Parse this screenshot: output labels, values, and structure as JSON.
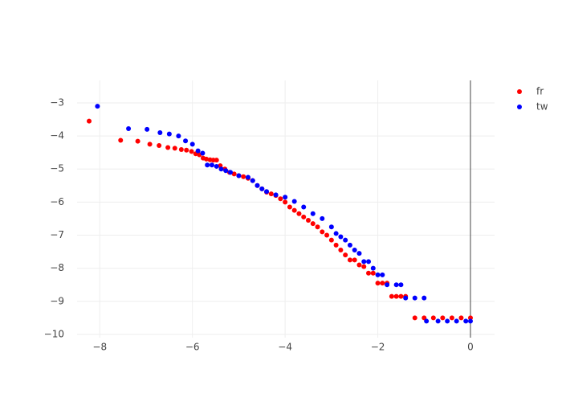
{
  "chart_data": {
    "type": "scatter",
    "xlim": [
      -8.49,
      0.52
    ],
    "ylim": [
      -10.1,
      -2.32
    ],
    "xticks": [
      {
        "value": -8,
        "label": "−8"
      },
      {
        "value": -6,
        "label": "−6"
      },
      {
        "value": -4,
        "label": "−4"
      },
      {
        "value": -2,
        "label": "−2"
      },
      0
    ],
    "yticks": [
      {
        "value": -3,
        "label": "−3"
      },
      {
        "value": -4,
        "label": "−4"
      },
      {
        "value": -5,
        "label": "−5"
      },
      {
        "value": -6,
        "label": "−6"
      },
      {
        "value": -7,
        "label": "−7"
      },
      {
        "value": -8,
        "label": "−8"
      },
      {
        "value": -9,
        "label": "−9"
      },
      {
        "value": -10,
        "label": "−10"
      }
    ],
    "grid": true,
    "zeroline_x": true,
    "legend": "top-right",
    "series": [
      {
        "name": "fr",
        "color": "#ff0000",
        "x": [
          -8.23,
          -7.55,
          -7.18,
          -6.92,
          -6.72,
          -6.53,
          -6.38,
          -6.24,
          -6.13,
          -6.02,
          -5.93,
          -5.85,
          -5.77,
          -5.7,
          -5.62,
          -5.55,
          -5.48,
          -5.4,
          -5.3,
          -5.2,
          -5.1,
          -5.0,
          -4.9,
          -4.8,
          -4.7,
          -4.6,
          -4.5,
          -4.4,
          -4.3,
          -4.2,
          -4.1,
          -4.0,
          -3.9,
          -3.8,
          -3.7,
          -3.6,
          -3.5,
          -3.4,
          -3.3,
          -3.2,
          -3.1,
          -3.0,
          -2.9,
          -2.8,
          -2.7,
          -2.6,
          -2.5,
          -2.4,
          -2.3,
          -2.2,
          -2.1,
          -2.0,
          -1.9,
          -1.8,
          -1.7,
          -1.6,
          -1.5,
          -1.4,
          -1.2,
          -1.0,
          -0.8,
          -0.6,
          -0.4,
          -0.2,
          0
        ],
        "values": [
          -3.55,
          -4.13,
          -4.16,
          -4.25,
          -4.29,
          -4.35,
          -4.37,
          -4.41,
          -4.43,
          -4.47,
          -4.54,
          -4.57,
          -4.67,
          -4.7,
          -4.72,
          -4.73,
          -4.73,
          -4.9,
          -5.0,
          -5.1,
          -5.15,
          -5.2,
          -5.23,
          -5.28,
          -5.35,
          -5.5,
          -5.6,
          -5.7,
          -5.75,
          -5.8,
          -5.9,
          -6.0,
          -6.15,
          -6.25,
          -6.35,
          -6.45,
          -6.55,
          -6.65,
          -6.75,
          -6.9,
          -7.0,
          -7.15,
          -7.3,
          -7.45,
          -7.6,
          -7.75,
          -7.75,
          -7.9,
          -7.95,
          -8.15,
          -8.15,
          -8.45,
          -8.45,
          -8.45,
          -8.85,
          -8.85,
          -8.85,
          -8.85,
          -9.5,
          -9.5,
          -9.5,
          -9.5,
          -9.5,
          -9.5,
          -9.5
        ]
      },
      {
        "name": "tw",
        "color": "#0000ff",
        "x": [
          -8.05,
          -7.38,
          -6.98,
          -6.7,
          -6.5,
          -6.3,
          -6.15,
          -6.0,
          -5.88,
          -5.78,
          -5.68,
          -5.58,
          -5.48,
          -5.38,
          -5.28,
          -5.18,
          -5.0,
          -4.8,
          -4.7,
          -4.6,
          -4.5,
          -4.4,
          -4.2,
          -4.0,
          -3.8,
          -3.6,
          -3.4,
          -3.2,
          -3.0,
          -2.9,
          -2.8,
          -2.7,
          -2.6,
          -2.5,
          -2.4,
          -2.3,
          -2.2,
          -2.1,
          -2.0,
          -1.9,
          -1.8,
          -1.6,
          -1.5,
          -1.4,
          -1.2,
          -1.0,
          -0.95,
          -0.7,
          -0.5,
          -0.3,
          -0.1,
          0
        ],
        "values": [
          -3.1,
          -3.78,
          -3.8,
          -3.9,
          -3.94,
          -4.0,
          -4.15,
          -4.25,
          -4.45,
          -4.52,
          -4.88,
          -4.88,
          -4.92,
          -5.0,
          -5.05,
          -5.1,
          -5.2,
          -5.25,
          -5.35,
          -5.5,
          -5.6,
          -5.68,
          -5.78,
          -5.85,
          -5.98,
          -6.15,
          -6.35,
          -6.5,
          -6.75,
          -6.95,
          -7.05,
          -7.15,
          -7.3,
          -7.45,
          -7.55,
          -7.8,
          -7.8,
          -8.0,
          -8.2,
          -8.2,
          -8.5,
          -8.5,
          -8.5,
          -8.9,
          -8.9,
          -8.9,
          -9.6,
          -9.6,
          -9.6,
          -9.6,
          -9.6,
          -9.6
        ]
      }
    ]
  }
}
